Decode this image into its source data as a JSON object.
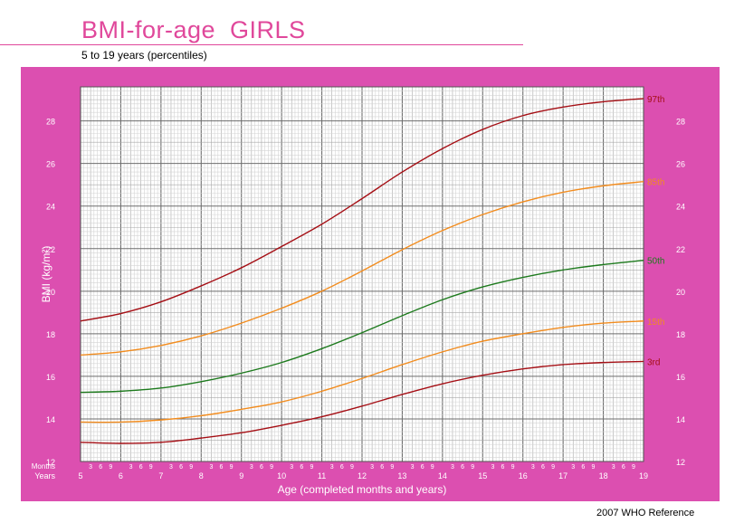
{
  "header": {
    "title": "BMI-for-age  GIRLS",
    "subtitle": "5 to 19 years (percentiles)"
  },
  "footer": {
    "reference": "2007 WHO Reference"
  },
  "colors": {
    "title": "#e0489b",
    "panel": "#dc4fb0",
    "p3": "#a50f15",
    "p15": "#f28c1e",
    "p50": "#1d7a1d",
    "p85": "#f28c1e",
    "p97": "#a50f15"
  },
  "chart_data": {
    "type": "line",
    "xlabel": "Age (completed months and years)",
    "ylabel": "BMI (kg/m²)",
    "xlim": [
      5,
      19
    ],
    "ylim": [
      12,
      29.6
    ],
    "x_major_ticks": [
      5,
      6,
      7,
      8,
      9,
      10,
      11,
      12,
      13,
      14,
      15,
      16,
      17,
      18,
      19
    ],
    "y_ticks": [
      12,
      14,
      16,
      18,
      20,
      22,
      24,
      26,
      28
    ],
    "months_row_label": "Months",
    "years_row_label": "Years",
    "month_ticks": [
      "3",
      "6",
      "9"
    ],
    "grid": true,
    "x": [
      5,
      6,
      7,
      8,
      9,
      10,
      11,
      12,
      13,
      14,
      15,
      16,
      17,
      18,
      19
    ],
    "series": [
      {
        "name": "3rd",
        "color": "#a50f15",
        "values": [
          12.9,
          12.85,
          12.9,
          13.1,
          13.35,
          13.7,
          14.1,
          14.6,
          15.15,
          15.65,
          16.05,
          16.35,
          16.55,
          16.65,
          16.7
        ]
      },
      {
        "name": "15th",
        "color": "#f28c1e",
        "values": [
          13.85,
          13.85,
          13.95,
          14.15,
          14.45,
          14.8,
          15.3,
          15.9,
          16.55,
          17.15,
          17.65,
          18.0,
          18.3,
          18.5,
          18.6
        ]
      },
      {
        "name": "50th",
        "color": "#1d7a1d",
        "values": [
          15.25,
          15.3,
          15.45,
          15.75,
          16.15,
          16.65,
          17.3,
          18.05,
          18.85,
          19.6,
          20.2,
          20.65,
          21.0,
          21.25,
          21.45
        ]
      },
      {
        "name": "85th",
        "color": "#f28c1e",
        "values": [
          17.0,
          17.15,
          17.45,
          17.9,
          18.5,
          19.2,
          20.0,
          20.95,
          21.95,
          22.85,
          23.6,
          24.2,
          24.65,
          24.95,
          25.15
        ]
      },
      {
        "name": "97th",
        "color": "#a50f15",
        "values": [
          18.6,
          18.95,
          19.5,
          20.25,
          21.1,
          22.1,
          23.15,
          24.35,
          25.6,
          26.7,
          27.6,
          28.25,
          28.65,
          28.9,
          29.05
        ]
      }
    ]
  }
}
